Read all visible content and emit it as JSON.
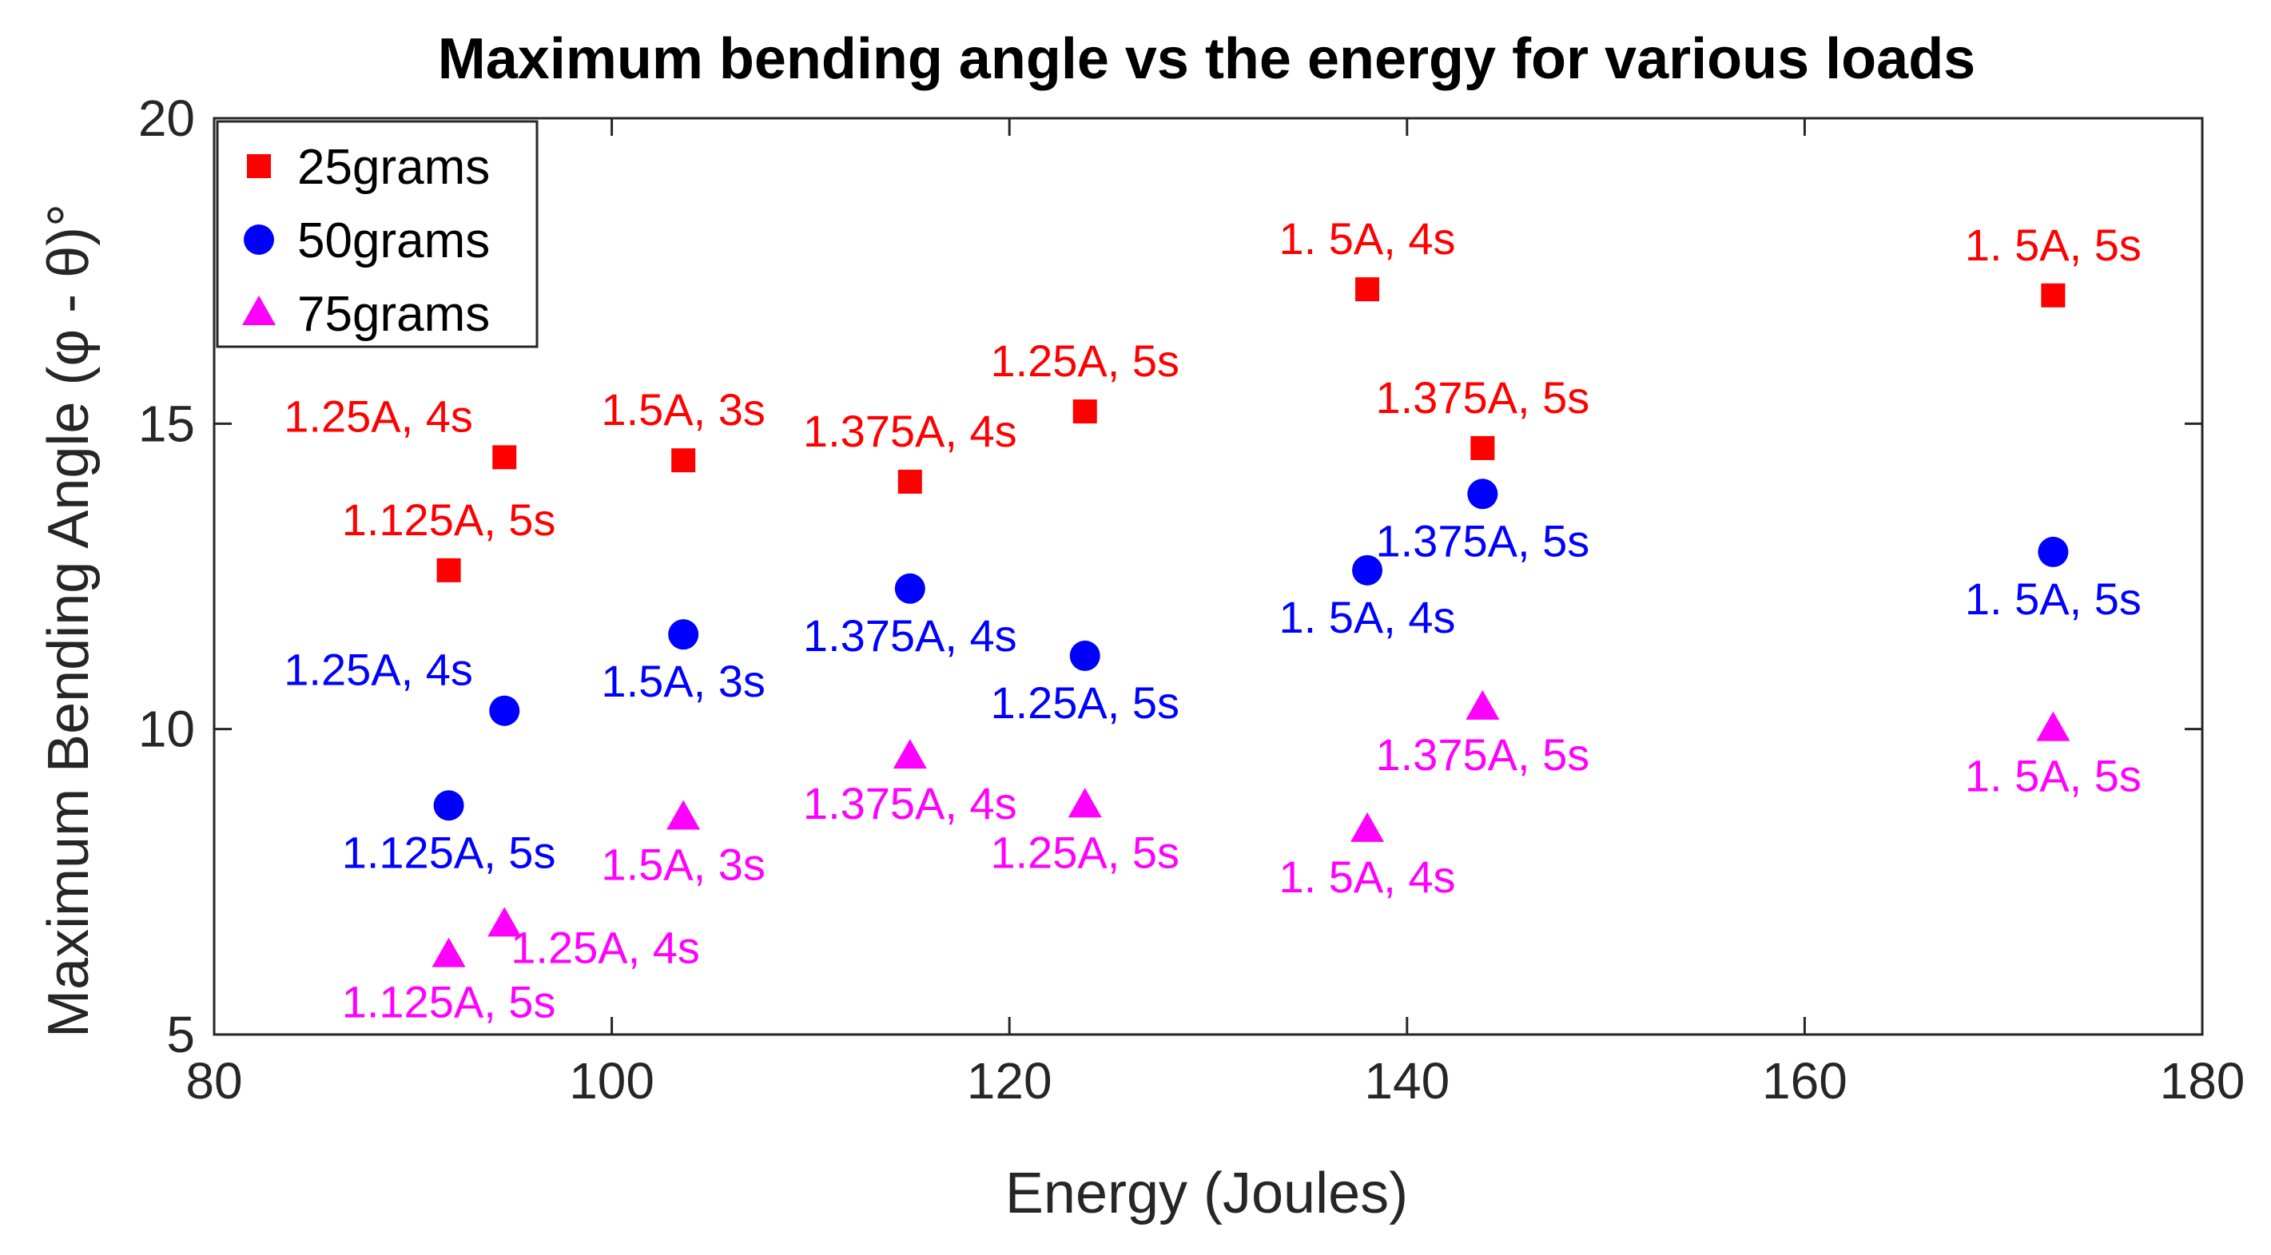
{
  "chart_data": {
    "type": "scatter",
    "title": "Maximum bending angle vs the energy for various loads",
    "xlabel": "Energy (Joules)",
    "ylabel": "Maximum Bending Angle (φ - θ)°",
    "xlim": [
      80,
      180
    ],
    "ylim": [
      5,
      20
    ],
    "xticks": [
      "80",
      "100",
      "120",
      "140",
      "160",
      "180"
    ],
    "yticks": [
      "5",
      "10",
      "15",
      "20"
    ],
    "grid": false,
    "legend_position": "top-left",
    "series": [
      {
        "name": "25grams",
        "color": "#ff0000",
        "marker": "square",
        "points": [
          {
            "x": 91.8,
            "y": 12.6,
            "label": "1.125A, 5s",
            "label_pos": "above"
          },
          {
            "x": 94.6,
            "y": 14.45,
            "label": "1.25A, 4s",
            "label_pos": "above-left"
          },
          {
            "x": 103.6,
            "y": 14.4,
            "label": "1.5A, 3s",
            "label_pos": "above"
          },
          {
            "x": 115.0,
            "y": 14.05,
            "label": "1.375A, 4s",
            "label_pos": "above"
          },
          {
            "x": 123.8,
            "y": 15.2,
            "label": "1.25A, 5s",
            "label_pos": "above"
          },
          {
            "x": 138.0,
            "y": 17.2,
            "label": "1. 5A, 4s",
            "label_pos": "above"
          },
          {
            "x": 143.8,
            "y": 14.6,
            "label": "1.375A, 5s",
            "label_pos": "above"
          },
          {
            "x": 172.5,
            "y": 17.1,
            "label": "1. 5A, 5s",
            "label_pos": "above"
          }
        ]
      },
      {
        "name": "50grams",
        "color": "#0000ff",
        "marker": "circle",
        "points": [
          {
            "x": 91.8,
            "y": 8.75,
            "label": "1.125A, 5s",
            "label_pos": "below"
          },
          {
            "x": 94.6,
            "y": 10.3,
            "label": "1.25A, 4s",
            "label_pos": "above-left"
          },
          {
            "x": 103.6,
            "y": 11.55,
            "label": "1.5A, 3s",
            "label_pos": "below"
          },
          {
            "x": 115.0,
            "y": 12.3,
            "label": "1.375A, 4s",
            "label_pos": "below"
          },
          {
            "x": 123.8,
            "y": 11.2,
            "label": "1.25A, 5s",
            "label_pos": "below"
          },
          {
            "x": 138.0,
            "y": 12.6,
            "label": "1. 5A, 4s",
            "label_pos": "below"
          },
          {
            "x": 143.8,
            "y": 13.85,
            "label": "1.375A, 5s",
            "label_pos": "below"
          },
          {
            "x": 172.5,
            "y": 12.9,
            "label": "1. 5A, 5s",
            "label_pos": "below"
          }
        ]
      },
      {
        "name": "75grams",
        "color": "#ff00ff",
        "marker": "triangle",
        "points": [
          {
            "x": 91.8,
            "y": 6.3,
            "label": "1.125A, 5s",
            "label_pos": "below"
          },
          {
            "x": 94.6,
            "y": 6.8,
            "label": "1.25A, 4s",
            "label_pos": "right"
          },
          {
            "x": 103.6,
            "y": 8.55,
            "label": "1.5A, 3s",
            "label_pos": "below"
          },
          {
            "x": 115.0,
            "y": 9.55,
            "label": "1.375A, 4s",
            "label_pos": "below"
          },
          {
            "x": 123.8,
            "y": 8.75,
            "label": "1.25A, 5s",
            "label_pos": "below"
          },
          {
            "x": 138.0,
            "y": 8.35,
            "label": "1. 5A, 4s",
            "label_pos": "below"
          },
          {
            "x": 143.8,
            "y": 10.35,
            "label": "1.375A, 5s",
            "label_pos": "below"
          },
          {
            "x": 172.5,
            "y": 10.0,
            "label": "1. 5A, 5s",
            "label_pos": "below"
          }
        ]
      }
    ]
  }
}
